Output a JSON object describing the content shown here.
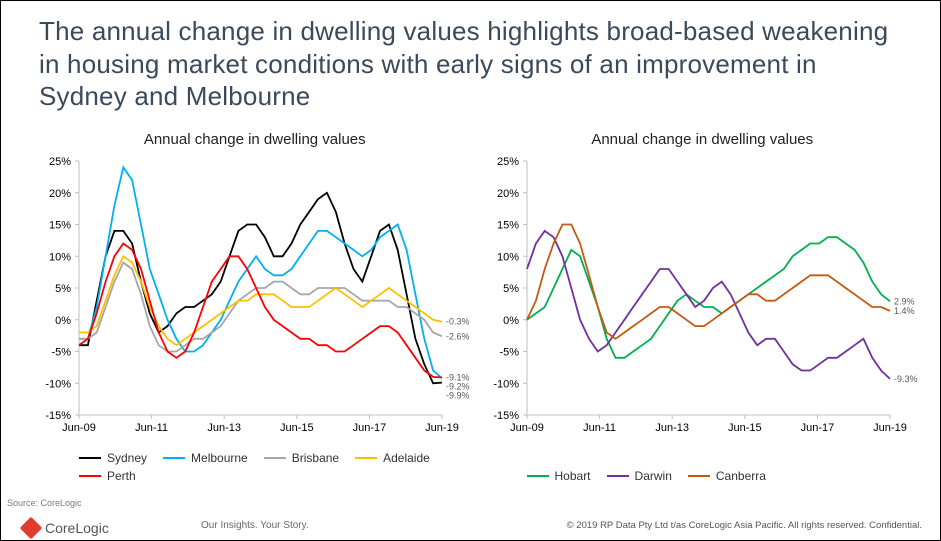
{
  "title": "The annual change in dwelling values highlights broad-based weakening in housing market conditions with early signs of an improvement in Sydney and Melbourne",
  "title_fontsize": 26,
  "title_color": "#3b4a5a",
  "background_color": "#ffffff",
  "axis": {
    "ylim": [
      -15,
      25
    ],
    "yticks": [
      -15,
      -10,
      -5,
      0,
      5,
      10,
      15,
      20,
      25
    ],
    "ytick_labels": [
      "-15%",
      "-10%",
      "-5%",
      "0%",
      "5%",
      "10%",
      "15%",
      "20%",
      "25%"
    ],
    "xcats": [
      "Jun-09",
      "Jun-11",
      "Jun-13",
      "Jun-15",
      "Jun-17",
      "Jun-19"
    ],
    "grid_color": "#bfbfbf",
    "label_fontsize": 11
  },
  "panel_left": {
    "title": "Annual change in dwelling values",
    "series": [
      {
        "name": "Sydney",
        "color": "#000000",
        "end_label": "-9.9%",
        "y": [
          -4,
          -4,
          3,
          10,
          14,
          14,
          12,
          6,
          1,
          -2,
          -1,
          1,
          2,
          2,
          3,
          4,
          6,
          10,
          14,
          15,
          15,
          13,
          10,
          10,
          12,
          15,
          17,
          19,
          20,
          17,
          12,
          8,
          6,
          10,
          14,
          15,
          11,
          4,
          -3,
          -7,
          -10,
          -9.9
        ]
      },
      {
        "name": "Melbourne",
        "color": "#00b0f0",
        "end_label": "-9.2%",
        "y": [
          -3,
          -3,
          2,
          10,
          18,
          24,
          22,
          15,
          8,
          4,
          0,
          -3,
          -5,
          -5,
          -4,
          -2,
          0,
          3,
          6,
          8,
          10,
          8,
          7,
          7,
          8,
          10,
          12,
          14,
          14,
          13,
          12,
          11,
          10,
          11,
          13,
          14,
          15,
          11,
          4,
          -3,
          -8,
          -9.2
        ]
      },
      {
        "name": "Brisbane",
        "color": "#a6a6a6",
        "end_label": "-2.6%",
        "y": [
          -3,
          -3,
          -2,
          2,
          6,
          9,
          8,
          4,
          -1,
          -4,
          -5,
          -5,
          -4,
          -3,
          -3,
          -2,
          -1,
          1,
          3,
          4,
          5,
          5,
          6,
          6,
          5,
          4,
          4,
          5,
          5,
          5,
          5,
          4,
          3,
          3,
          3,
          3,
          2,
          2,
          1,
          0,
          -2,
          -2.6
        ]
      },
      {
        "name": "Adelaide",
        "color": "#ffc000",
        "end_label": "-0.3%",
        "y": [
          -2,
          -2,
          -1,
          3,
          7,
          10,
          9,
          6,
          2,
          -1,
          -3,
          -4,
          -3,
          -2,
          -1,
          0,
          1,
          2,
          3,
          3,
          4,
          4,
          4,
          3,
          2,
          2,
          2,
          3,
          4,
          5,
          4,
          3,
          2,
          3,
          4,
          5,
          4,
          3,
          2,
          1,
          0,
          -0.3
        ]
      },
      {
        "name": "Perth",
        "color": "#ff0000",
        "end_label": "-9.1%",
        "y": [
          -4,
          -3,
          1,
          6,
          10,
          12,
          11,
          8,
          3,
          -2,
          -5,
          -6,
          -5,
          -2,
          2,
          6,
          8,
          10,
          10,
          8,
          5,
          2,
          0,
          -1,
          -2,
          -3,
          -3,
          -4,
          -4,
          -5,
          -5,
          -4,
          -3,
          -2,
          -1,
          -1,
          -2,
          -4,
          -6,
          -8,
          -9,
          -9.1
        ]
      }
    ],
    "legend_order": [
      "Sydney",
      "Melbourne",
      "Brisbane",
      "Adelaide",
      "Perth"
    ]
  },
  "panel_right": {
    "title": "Annual change in dwelling values",
    "series": [
      {
        "name": "Hobart",
        "color": "#00b050",
        "end_label": "2.9%",
        "y": [
          0,
          1,
          2,
          5,
          8,
          11,
          10,
          6,
          2,
          -3,
          -6,
          -6,
          -5,
          -4,
          -3,
          -1,
          1,
          3,
          4,
          3,
          2,
          2,
          1,
          2,
          3,
          4,
          5,
          6,
          7,
          8,
          10,
          11,
          12,
          12,
          13,
          13,
          12,
          11,
          9,
          6,
          4,
          2.9
        ]
      },
      {
        "name": "Darwin",
        "color": "#7030a0",
        "end_label": "-9.3%",
        "y": [
          8,
          12,
          14,
          13,
          10,
          5,
          0,
          -3,
          -5,
          -4,
          -2,
          0,
          2,
          4,
          6,
          8,
          8,
          6,
          4,
          2,
          3,
          5,
          6,
          4,
          1,
          -2,
          -4,
          -3,
          -3,
          -5,
          -7,
          -8,
          -8,
          -7,
          -6,
          -6,
          -5,
          -4,
          -3,
          -6,
          -8,
          -9.3
        ]
      },
      {
        "name": "Canberra",
        "color": "#c65911",
        "end_label": "1.4%",
        "y": [
          0,
          3,
          8,
          12,
          15,
          15,
          12,
          7,
          2,
          -2,
          -3,
          -2,
          -1,
          0,
          1,
          2,
          2,
          1,
          0,
          -1,
          -1,
          0,
          1,
          2,
          3,
          4,
          4,
          3,
          3,
          4,
          5,
          6,
          7,
          7,
          7,
          6,
          5,
          4,
          3,
          2,
          2,
          1.4
        ]
      }
    ],
    "legend_order": [
      "Hobart",
      "Darwin",
      "Canberra"
    ]
  },
  "line_width": 1.8,
  "footer": {
    "source": "Source: CoreLogic",
    "brand": "CoreLogic",
    "brand_color": "#e03c31",
    "tagline": "Our Insights. Your Story.",
    "copyright": "© 2019 RP Data Pty Ltd t/as CoreLogic Asia Pacific. All rights reserved. Confidential."
  }
}
